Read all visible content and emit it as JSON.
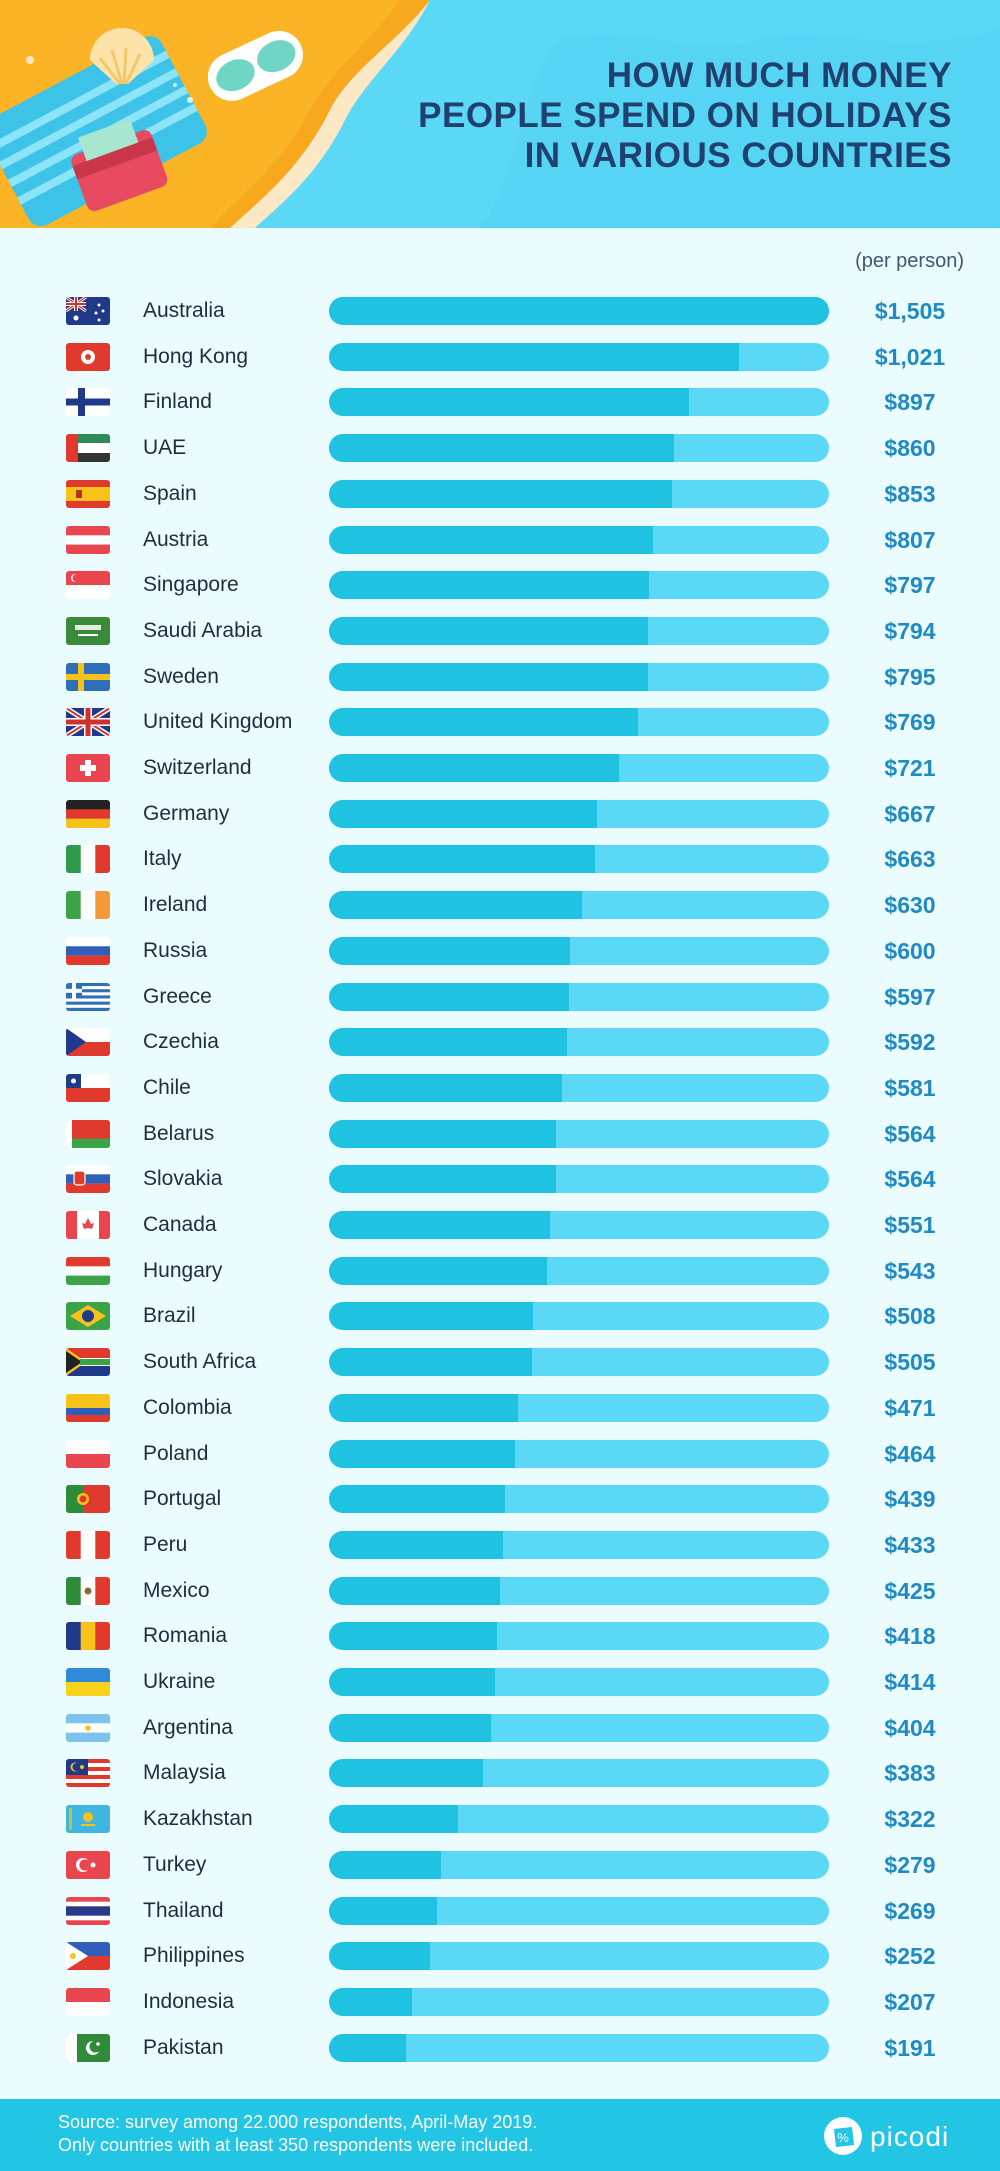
{
  "title_lines": [
    "How much money",
    "people spend on holidays",
    "in various countries"
  ],
  "unit_note": "(per person)",
  "footer": {
    "source_line1": "Source: survey among 22.000 respondents, April-May 2019.",
    "source_line2": "Only countries with at least 350 respondents were included.",
    "brand": "picodi"
  },
  "colors": {
    "bar_fill": "#20c2e1",
    "bar_track": "#5cd8f7",
    "value_text": "#1f8ac4",
    "title_text": "#20406e"
  },
  "chart_data": {
    "type": "bar",
    "orientation": "horizontal",
    "title": "How much money people spend on holidays in various countries",
    "unit": "(per person)",
    "currency": "$",
    "categories": [
      "Australia",
      "Hong Kong",
      "Finland",
      "UAE",
      "Spain",
      "Austria",
      "Singapore",
      "Saudi Arabia",
      "Sweden",
      "United Kingdom",
      "Switzerland",
      "Germany",
      "Italy",
      "Ireland",
      "Russia",
      "Greece",
      "Czechia",
      "Chile",
      "Belarus",
      "Slovakia",
      "Canada",
      "Hungary",
      "Brazil",
      "South Africa",
      "Colombia",
      "Poland",
      "Portugal",
      "Peru",
      "Mexico",
      "Romania",
      "Ukraine",
      "Argentina",
      "Malaysia",
      "Kazakhstan",
      "Turkey",
      "Thailand",
      "Philippines",
      "Indonesia",
      "Pakistan"
    ],
    "values": [
      1505,
      1021,
      897,
      860,
      853,
      807,
      797,
      794,
      795,
      769,
      721,
      667,
      663,
      630,
      600,
      597,
      592,
      581,
      564,
      564,
      551,
      543,
      508,
      505,
      471,
      464,
      439,
      433,
      425,
      418,
      414,
      404,
      383,
      322,
      279,
      269,
      252,
      207,
      191
    ],
    "value_labels": [
      "$1,505",
      "$1,021",
      "$897",
      "$860",
      "$853",
      "$807",
      "$797",
      "$794",
      "$795",
      "$769",
      "$721",
      "$667",
      "$663",
      "$630",
      "$600",
      "$597",
      "$592",
      "$581",
      "$564",
      "$564",
      "$551",
      "$543",
      "$508",
      "$505",
      "$471",
      "$464",
      "$439",
      "$433",
      "$425",
      "$418",
      "$414",
      "$404",
      "$383",
      "$322",
      "$279",
      "$269",
      "$252",
      "$207",
      "$191"
    ],
    "xlim": [
      0,
      1245
    ],
    "flag_icons": [
      "flag-australia-icon",
      "flag-hong-kong-icon",
      "flag-finland-icon",
      "flag-uae-icon",
      "flag-spain-icon",
      "flag-austria-icon",
      "flag-singapore-icon",
      "flag-saudi-arabia-icon",
      "flag-sweden-icon",
      "flag-united-kingdom-icon",
      "flag-switzerland-icon",
      "flag-germany-icon",
      "flag-italy-icon",
      "flag-ireland-icon",
      "flag-russia-icon",
      "flag-greece-icon",
      "flag-czechia-icon",
      "flag-chile-icon",
      "flag-belarus-icon",
      "flag-slovakia-icon",
      "flag-canada-icon",
      "flag-hungary-icon",
      "flag-brazil-icon",
      "flag-south-africa-icon",
      "flag-colombia-icon",
      "flag-poland-icon",
      "flag-portugal-icon",
      "flag-peru-icon",
      "flag-mexico-icon",
      "flag-romania-icon",
      "flag-ukraine-icon",
      "flag-argentina-icon",
      "flag-malaysia-icon",
      "flag-kazakhstan-icon",
      "flag-turkey-icon",
      "flag-thailand-icon",
      "flag-philippines-icon",
      "flag-indonesia-icon",
      "flag-pakistan-icon"
    ]
  }
}
